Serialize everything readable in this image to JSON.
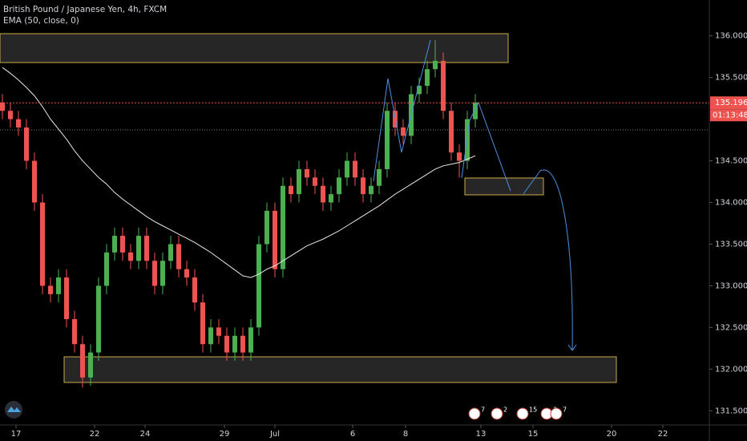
{
  "chart_data": {
    "type": "candlestick",
    "title": "British Pound / Japanese Yen, 4h, FXCM",
    "indicator": {
      "label": "EMA (50, close, 0)",
      "color": "#e8e8e8",
      "values": [
        135.62,
        135.55,
        135.47,
        135.38,
        135.28,
        135.15,
        135.0,
        134.88,
        134.76,
        134.62,
        134.5,
        134.4,
        134.3,
        134.22,
        134.12,
        134.04,
        133.97,
        133.9,
        133.83,
        133.77,
        133.72,
        133.67,
        133.62,
        133.57,
        133.52,
        133.46,
        133.4,
        133.33,
        133.26,
        133.19,
        133.12,
        133.1,
        133.14,
        133.2,
        133.24,
        133.3,
        133.36,
        133.42,
        133.48,
        133.52,
        133.56,
        133.61,
        133.66,
        133.72,
        133.78,
        133.84,
        133.9,
        133.96,
        134.03,
        134.1,
        134.16,
        134.22,
        134.28,
        134.34,
        134.4,
        134.44,
        134.46,
        134.48,
        134.52,
        134.56
      ]
    },
    "open": [
      135.2,
      135.1,
      135.0,
      134.9,
      134.5,
      134.0,
      133.0,
      132.9,
      133.1,
      132.6,
      132.3,
      131.9,
      132.2,
      133.0,
      133.4,
      133.6,
      133.4,
      133.3,
      133.6,
      133.3,
      133.0,
      133.3,
      133.5,
      133.2,
      133.1,
      132.8,
      132.3,
      132.5,
      132.4,
      132.2,
      132.4,
      132.2,
      132.5,
      133.5,
      133.9,
      133.2,
      134.2,
      134.1,
      134.4,
      134.3,
      134.2,
      134.0,
      134.1,
      134.3,
      134.5,
      134.3,
      134.1,
      134.2,
      134.4,
      135.1,
      134.9,
      134.8,
      135.3,
      135.4,
      135.6,
      135.7,
      135.1,
      134.6,
      134.5,
      135.0
    ],
    "high": [
      135.3,
      135.2,
      135.1,
      135.0,
      134.6,
      134.1,
      133.1,
      133.2,
      133.2,
      132.7,
      132.4,
      132.3,
      133.1,
      133.5,
      133.7,
      133.7,
      133.5,
      133.7,
      133.7,
      133.4,
      133.4,
      133.6,
      133.6,
      133.3,
      133.2,
      132.9,
      132.6,
      132.6,
      132.5,
      132.5,
      132.5,
      132.6,
      133.6,
      134.0,
      134.0,
      134.3,
      134.3,
      134.5,
      134.5,
      134.4,
      134.3,
      134.2,
      134.4,
      134.6,
      134.6,
      134.4,
      134.3,
      134.5,
      135.2,
      135.2,
      135.0,
      135.4,
      135.5,
      135.7,
      135.95,
      135.8,
      135.2,
      134.7,
      135.1,
      135.3
    ],
    "low": [
      135.0,
      134.9,
      134.8,
      134.4,
      133.9,
      132.9,
      132.8,
      132.8,
      132.5,
      132.2,
      131.78,
      131.8,
      132.1,
      132.9,
      133.3,
      133.3,
      133.2,
      133.2,
      133.2,
      132.9,
      132.9,
      133.2,
      133.1,
      133.0,
      132.7,
      132.2,
      132.2,
      132.3,
      132.1,
      132.1,
      132.1,
      132.1,
      132.4,
      133.4,
      133.1,
      133.1,
      134.0,
      134.0,
      134.2,
      134.1,
      133.9,
      133.9,
      134.0,
      134.2,
      134.2,
      134.0,
      134.0,
      134.1,
      134.3,
      134.8,
      134.7,
      134.7,
      135.2,
      135.3,
      135.5,
      135.0,
      134.5,
      134.3,
      134.4,
      134.9
    ],
    "close": [
      135.1,
      135.0,
      134.9,
      134.5,
      134.0,
      133.0,
      132.9,
      133.1,
      132.6,
      132.3,
      131.9,
      132.2,
      133.0,
      133.4,
      133.6,
      133.4,
      133.3,
      133.6,
      133.3,
      133.0,
      133.3,
      133.5,
      133.2,
      133.1,
      132.8,
      132.3,
      132.5,
      132.4,
      132.2,
      132.4,
      132.2,
      132.5,
      133.5,
      133.9,
      133.2,
      134.2,
      134.1,
      134.4,
      134.3,
      134.2,
      134.0,
      134.1,
      134.3,
      134.5,
      134.3,
      134.1,
      134.2,
      134.4,
      135.1,
      134.9,
      134.8,
      135.3,
      135.4,
      135.6,
      135.7,
      135.1,
      134.6,
      134.5,
      135.0,
      135.2
    ],
    "up_color": "#4caf50",
    "down_color": "#ef5350",
    "ylim": [
      131.33,
      136.43
    ],
    "yticks": [
      {
        "value": 136,
        "label": "136.000"
      },
      {
        "value": 135.5,
        "label": "135.500"
      },
      {
        "value": 134.5,
        "label": "134.500"
      },
      {
        "value": 134,
        "label": "134.000"
      },
      {
        "value": 133.5,
        "label": "133.500"
      },
      {
        "value": 133,
        "label": "133.000"
      },
      {
        "value": 132.5,
        "label": "132.500"
      },
      {
        "value": 132,
        "label": "132.000"
      },
      {
        "value": 131.5,
        "label": "131.500"
      }
    ],
    "xticks": [
      {
        "value": 1.7,
        "label": "17"
      },
      {
        "value": 11.5,
        "label": "22"
      },
      {
        "value": 17.8,
        "label": "24"
      },
      {
        "value": 27.7,
        "label": "29"
      },
      {
        "value": 34.0,
        "label": "Jul"
      },
      {
        "value": 43.7,
        "label": "6"
      },
      {
        "value": 50.3,
        "label": "8"
      },
      {
        "value": 59.7,
        "label": "13"
      },
      {
        "value": 66.2,
        "label": "15"
      },
      {
        "value": 76.0,
        "label": "20"
      },
      {
        "value": 82.4,
        "label": "22"
      }
    ],
    "last_price": 135.196,
    "countdown": "01:13:48",
    "price_line_color": "#ef5350",
    "event_badges": [
      "7",
      "2",
      "15",
      "3",
      "7"
    ]
  }
}
